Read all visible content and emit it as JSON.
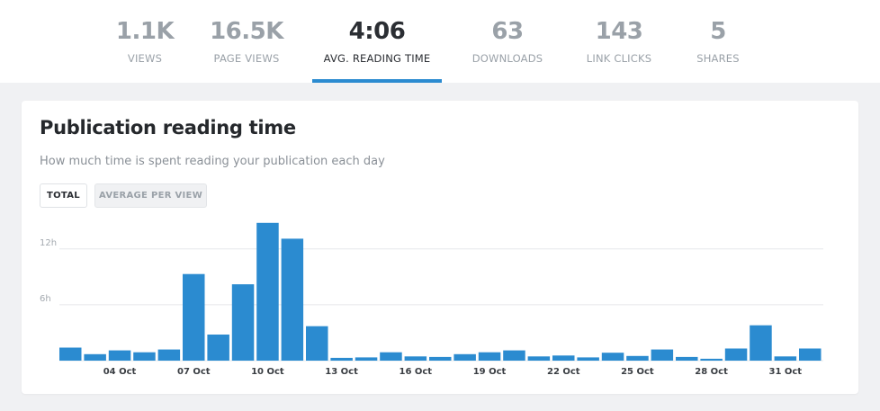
{
  "stats": [
    {
      "value": "1.1K",
      "label": "VIEWS",
      "active": false
    },
    {
      "value": "16.5K",
      "label": "PAGE VIEWS",
      "active": false
    },
    {
      "value": "4:06",
      "label": "AVG. READING TIME",
      "active": true
    },
    {
      "value": "63",
      "label": "DOWNLOADS",
      "active": false
    },
    {
      "value": "143",
      "label": "LINK CLICKS",
      "active": false
    },
    {
      "value": "5",
      "label": "SHARES",
      "active": false
    }
  ],
  "card": {
    "title": "Publication reading time",
    "subtitle": "How much time is spent reading your publication each day",
    "toggle_total": "TOTAL",
    "toggle_avg": "AVERAGE PER VIEW"
  },
  "colors": {
    "accent": "#2b8bd0",
    "bar": "#2b8bd0",
    "background": "#f0f1f3"
  },
  "chart_data": {
    "type": "bar",
    "unit": "hours",
    "categories": [
      "02 Oct",
      "03 Oct",
      "04 Oct",
      "05 Oct",
      "06 Oct",
      "07 Oct",
      "08 Oct",
      "09 Oct",
      "10 Oct",
      "11 Oct",
      "12 Oct",
      "13 Oct",
      "14 Oct",
      "15 Oct",
      "16 Oct",
      "17 Oct",
      "18 Oct",
      "19 Oct",
      "20 Oct",
      "21 Oct",
      "22 Oct",
      "23 Oct",
      "24 Oct",
      "25 Oct",
      "26 Oct",
      "27 Oct",
      "28 Oct",
      "29 Oct",
      "30 Oct",
      "31 Oct",
      "01 Nov"
    ],
    "values": [
      1.4,
      0.7,
      1.1,
      0.9,
      1.2,
      9.3,
      2.8,
      8.2,
      14.8,
      13.1,
      3.7,
      0.3,
      0.35,
      0.9,
      0.45,
      0.4,
      0.7,
      0.9,
      1.1,
      0.45,
      0.55,
      0.35,
      0.85,
      0.5,
      1.2,
      0.4,
      0.2,
      1.3,
      3.8,
      0.45,
      1.3
    ],
    "x_tick_labels": [
      "04 Oct",
      "07 Oct",
      "10 Oct",
      "13 Oct",
      "16 Oct",
      "19 Oct",
      "22 Oct",
      "25 Oct",
      "28 Oct",
      "31 Oct"
    ],
    "y_tick_labels": [
      "6h",
      "12h"
    ],
    "y_ticks": [
      6,
      12
    ],
    "ylim": [
      0,
      15
    ],
    "grid": true
  }
}
